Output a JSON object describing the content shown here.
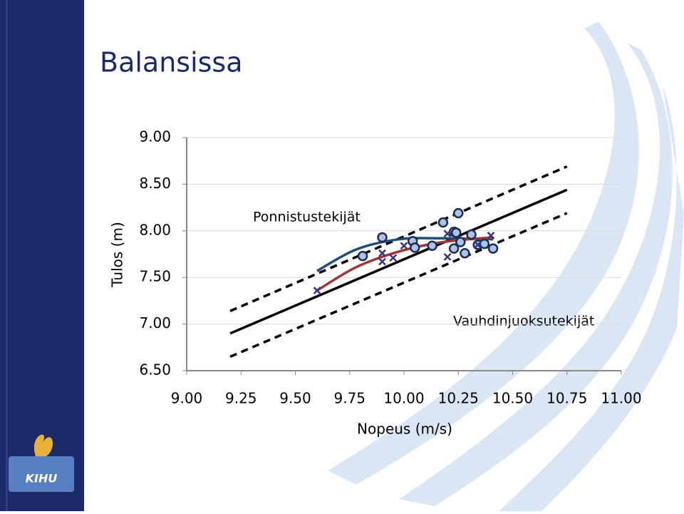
{
  "slide_title": "Balansissa",
  "chart_data": {
    "type": "scatter",
    "xlabel": "Nopeus (m/s)",
    "ylabel": "Tulos (m)",
    "annotations": [
      "Ponnistustekijät",
      "Vauhdinjuoksutekijät"
    ],
    "xlim": [
      9.0,
      11.0
    ],
    "ylim": [
      6.5,
      9.0
    ],
    "xticks": [
      {
        "value": 9.0,
        "label": "9.00"
      },
      9.25,
      {
        "value": 9.5,
        "label": "9.50"
      },
      9.75,
      {
        "value": 10.0,
        "label": "10.00"
      },
      10.25,
      {
        "value": 10.5,
        "label": "10.50"
      },
      10.75,
      {
        "value": 11.0,
        "label": "11.00"
      }
    ],
    "yticks": [
      {
        "value": 6.5,
        "label": "6.50"
      },
      {
        "value": 7.0,
        "label": "7.00"
      },
      {
        "value": 7.5,
        "label": "7.50"
      },
      {
        "value": 8.0,
        "label": "8.00"
      },
      {
        "value": 8.5,
        "label": "8.50"
      },
      {
        "value": 9.0,
        "label": "9.00"
      }
    ],
    "grid": true,
    "series": [
      {
        "marker": "o",
        "color": "#1f2d4f",
        "fill": "#a9c4e8",
        "x": [
          9.81,
          9.9,
          10.04,
          10.05,
          10.13,
          10.18,
          10.23,
          10.24,
          10.25,
          10.23,
          10.26,
          10.28,
          10.31,
          10.34,
          10.37,
          10.41
        ],
        "values": [
          7.73,
          7.93,
          7.89,
          7.82,
          7.84,
          8.09,
          7.99,
          7.98,
          8.19,
          7.81,
          7.88,
          7.76,
          7.96,
          7.85,
          7.86,
          7.81
        ]
      },
      {
        "marker": "x",
        "color": "#3a3580",
        "x": [
          9.6,
          9.9,
          9.9,
          9.95,
          10.0,
          10.2,
          10.2,
          10.34,
          10.4
        ],
        "values": [
          7.36,
          7.76,
          7.67,
          7.71,
          7.84,
          7.97,
          7.72,
          7.85,
          7.95
        ]
      },
      {
        "line": "solid",
        "color": "#000000",
        "x": [
          9.2,
          10.75
        ],
        "values": [
          6.9,
          8.44
        ]
      },
      {
        "line": "dashed",
        "color": "#000000",
        "x": [
          9.2,
          10.75
        ],
        "values": [
          7.14,
          8.69
        ]
      },
      {
        "line": "dashed",
        "color": "#000000",
        "x": [
          9.2,
          10.75
        ],
        "values": [
          6.65,
          8.19
        ]
      },
      {
        "line": "curve",
        "color": "#1f4e79",
        "x": [
          9.6,
          9.78,
          9.98,
          10.18,
          10.41
        ],
        "values": [
          7.57,
          7.8,
          7.91,
          7.92,
          7.91
        ]
      },
      {
        "line": "curve",
        "color": "#a0373a",
        "x": [
          9.6,
          9.78,
          9.98,
          10.18,
          10.41
        ],
        "values": [
          7.36,
          7.61,
          7.78,
          7.88,
          7.93
        ]
      }
    ]
  }
}
